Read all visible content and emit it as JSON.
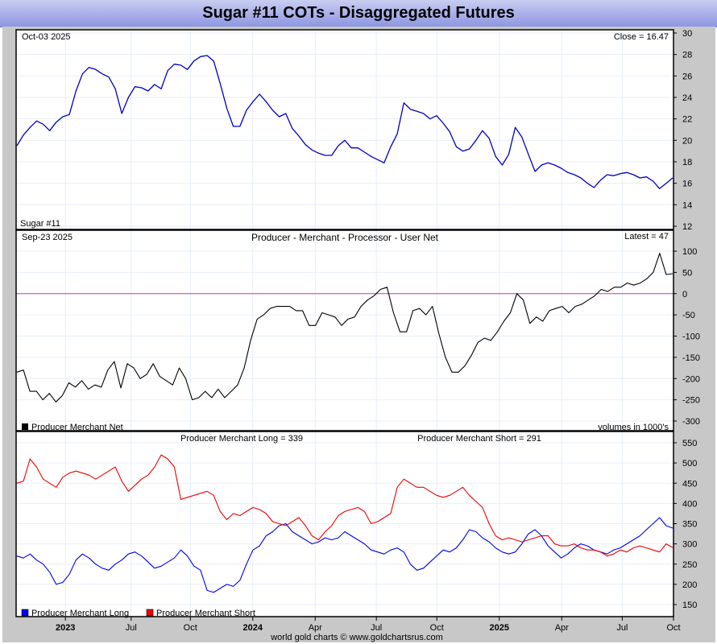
{
  "title": "Sugar #11 COTs - Disaggregated Futures",
  "footer": "world gold charts © www.goldchartsrus.com",
  "x_axis_labels": [
    "2023",
    "Jul",
    "Oct",
    "2024",
    "Apr",
    "Jul",
    "Oct",
    "2025",
    "Apr",
    "Jul",
    "Oct"
  ],
  "x_axis_bold": [
    true,
    false,
    false,
    true,
    false,
    false,
    false,
    true,
    false,
    false,
    false
  ],
  "x_axis_pos": [
    0.075,
    0.175,
    0.265,
    0.36,
    0.455,
    0.548,
    0.64,
    0.735,
    0.83,
    0.922,
    1.0
  ],
  "colors": {
    "price": "#0000c0",
    "net": "#000000",
    "zero_line": "#cc33cc",
    "long": "#0000ee",
    "short": "#ee0000"
  },
  "chart_data": [
    {
      "type": "line",
      "name": "price-panel",
      "corner_left": "Oct-03  2025",
      "corner_right": "Close = 16.47",
      "bottom_left": "Sugar #11",
      "ylim": [
        12,
        30
      ],
      "yticks": [
        "12",
        "14",
        "16",
        "18",
        "20",
        "22",
        "24",
        "26",
        "28",
        "30"
      ],
      "series": [
        {
          "name": "Sugar #11",
          "values": [
            19.5,
            20.5,
            21.2,
            21.8,
            21.5,
            20.9,
            21.7,
            22.2,
            22.4,
            24.6,
            26.2,
            26.8,
            26.6,
            26.2,
            25.9,
            24.8,
            22.5,
            24.0,
            25.0,
            24.9,
            24.6,
            25.2,
            24.8,
            26.5,
            27.1,
            27.0,
            26.6,
            27.4,
            27.8,
            27.9,
            27.4,
            25.3,
            23.0,
            21.3,
            21.3,
            22.8,
            23.6,
            24.3,
            23.6,
            22.8,
            22.2,
            22.5,
            21.1,
            20.4,
            19.6,
            19.1,
            18.8,
            18.6,
            18.6,
            19.5,
            20.0,
            19.3,
            19.3,
            18.9,
            18.5,
            18.2,
            17.9,
            19.4,
            20.6,
            23.5,
            22.9,
            22.7,
            22.5,
            22.0,
            22.3,
            21.6,
            20.8,
            19.4,
            19.0,
            19.2,
            20.0,
            20.9,
            20.2,
            18.5,
            17.7,
            18.7,
            21.2,
            20.3,
            18.7,
            17.1,
            17.7,
            17.9,
            17.7,
            17.4,
            17.0,
            16.8,
            16.5,
            16.0,
            15.6,
            16.3,
            16.8,
            16.7,
            16.9,
            17.0,
            16.8,
            16.5,
            16.6,
            16.2,
            15.5,
            16.0,
            16.5
          ]
        }
      ],
      "xlim": [
        0,
        1
      ]
    },
    {
      "type": "line",
      "name": "net-panel",
      "corner_left": "Sep-23  2025",
      "center_title": "Producer - Merchant - Processor - User Net",
      "corner_right": "Latest = 47",
      "bottom_right": "volumes in 1000's",
      "ylim": [
        -300,
        100
      ],
      "yticks": [
        "-300",
        "-250",
        "-200",
        "-150",
        "-100",
        "-50",
        "0",
        "50",
        "100"
      ],
      "legend": [
        "Producer Merchant Net"
      ],
      "series": [
        {
          "name": "Producer Merchant Net",
          "values": [
            -185,
            -180,
            -230,
            -230,
            -250,
            -235,
            -255,
            -240,
            -210,
            -220,
            -205,
            -225,
            -215,
            -220,
            -180,
            -160,
            -222,
            -165,
            -175,
            -200,
            -190,
            -165,
            -195,
            -205,
            -215,
            -175,
            -200,
            -250,
            -245,
            -230,
            -245,
            -225,
            -245,
            -230,
            -215,
            -175,
            -110,
            -60,
            -50,
            -35,
            -30,
            -30,
            -30,
            -40,
            -40,
            -75,
            -75,
            -45,
            -50,
            -55,
            -75,
            -60,
            -55,
            -30,
            -15,
            -5,
            10,
            15,
            -45,
            -90,
            -90,
            -40,
            -35,
            -50,
            -30,
            -95,
            -150,
            -185,
            -185,
            -170,
            -145,
            -115,
            -105,
            -110,
            -90,
            -65,
            -45,
            0,
            -15,
            -70,
            -55,
            -65,
            -40,
            -35,
            -30,
            -45,
            -30,
            -25,
            -15,
            -5,
            10,
            5,
            15,
            15,
            25,
            20,
            25,
            35,
            50,
            95,
            45,
            47
          ]
        }
      ],
      "xlim": [
        0,
        1
      ]
    },
    {
      "type": "line",
      "name": "long-short-panel",
      "top_left_title": "Producer Merchant Long = 339",
      "top_right_title": "Producer Merchant Short = 291",
      "ylim": [
        150,
        550
      ],
      "yticks": [
        "150",
        "200",
        "250",
        "300",
        "350",
        "400",
        "450",
        "500",
        "550"
      ],
      "legend": [
        "Producer Merchant Long",
        "Producer Merchant Short"
      ],
      "series": [
        {
          "name": "Producer Merchant Long",
          "values": [
            270,
            265,
            275,
            260,
            250,
            230,
            200,
            205,
            225,
            260,
            275,
            265,
            250,
            240,
            235,
            250,
            260,
            275,
            280,
            270,
            255,
            240,
            245,
            255,
            265,
            285,
            270,
            245,
            235,
            185,
            180,
            190,
            200,
            195,
            210,
            250,
            285,
            295,
            320,
            330,
            345,
            350,
            330,
            320,
            310,
            300,
            305,
            315,
            310,
            315,
            330,
            320,
            310,
            300,
            285,
            280,
            275,
            285,
            290,
            280,
            250,
            235,
            240,
            255,
            270,
            285,
            280,
            290,
            310,
            335,
            330,
            315,
            305,
            290,
            280,
            275,
            280,
            300,
            325,
            335,
            320,
            295,
            280,
            265,
            275,
            290,
            300,
            295,
            285,
            280,
            275,
            285,
            290,
            300,
            310,
            320,
            335,
            350,
            365,
            345,
            339
          ]
        },
        {
          "name": "Producer Merchant Short",
          "values": [
            450,
            455,
            510,
            490,
            460,
            450,
            440,
            465,
            475,
            480,
            475,
            470,
            460,
            470,
            480,
            490,
            455,
            430,
            445,
            460,
            470,
            490,
            520,
            510,
            490,
            410,
            415,
            420,
            425,
            430,
            420,
            380,
            360,
            375,
            370,
            380,
            390,
            385,
            375,
            355,
            350,
            345,
            355,
            365,
            345,
            320,
            310,
            330,
            345,
            370,
            380,
            385,
            390,
            380,
            350,
            355,
            365,
            375,
            440,
            460,
            450,
            440,
            440,
            430,
            420,
            415,
            420,
            430,
            440,
            420,
            405,
            390,
            350,
            320,
            310,
            315,
            310,
            305,
            310,
            315,
            320,
            320,
            300,
            295,
            295,
            300,
            290,
            285,
            285,
            280,
            270,
            275,
            285,
            280,
            290,
            295,
            290,
            285,
            280,
            300,
            291
          ]
        }
      ],
      "xlim": [
        0,
        1
      ]
    }
  ]
}
